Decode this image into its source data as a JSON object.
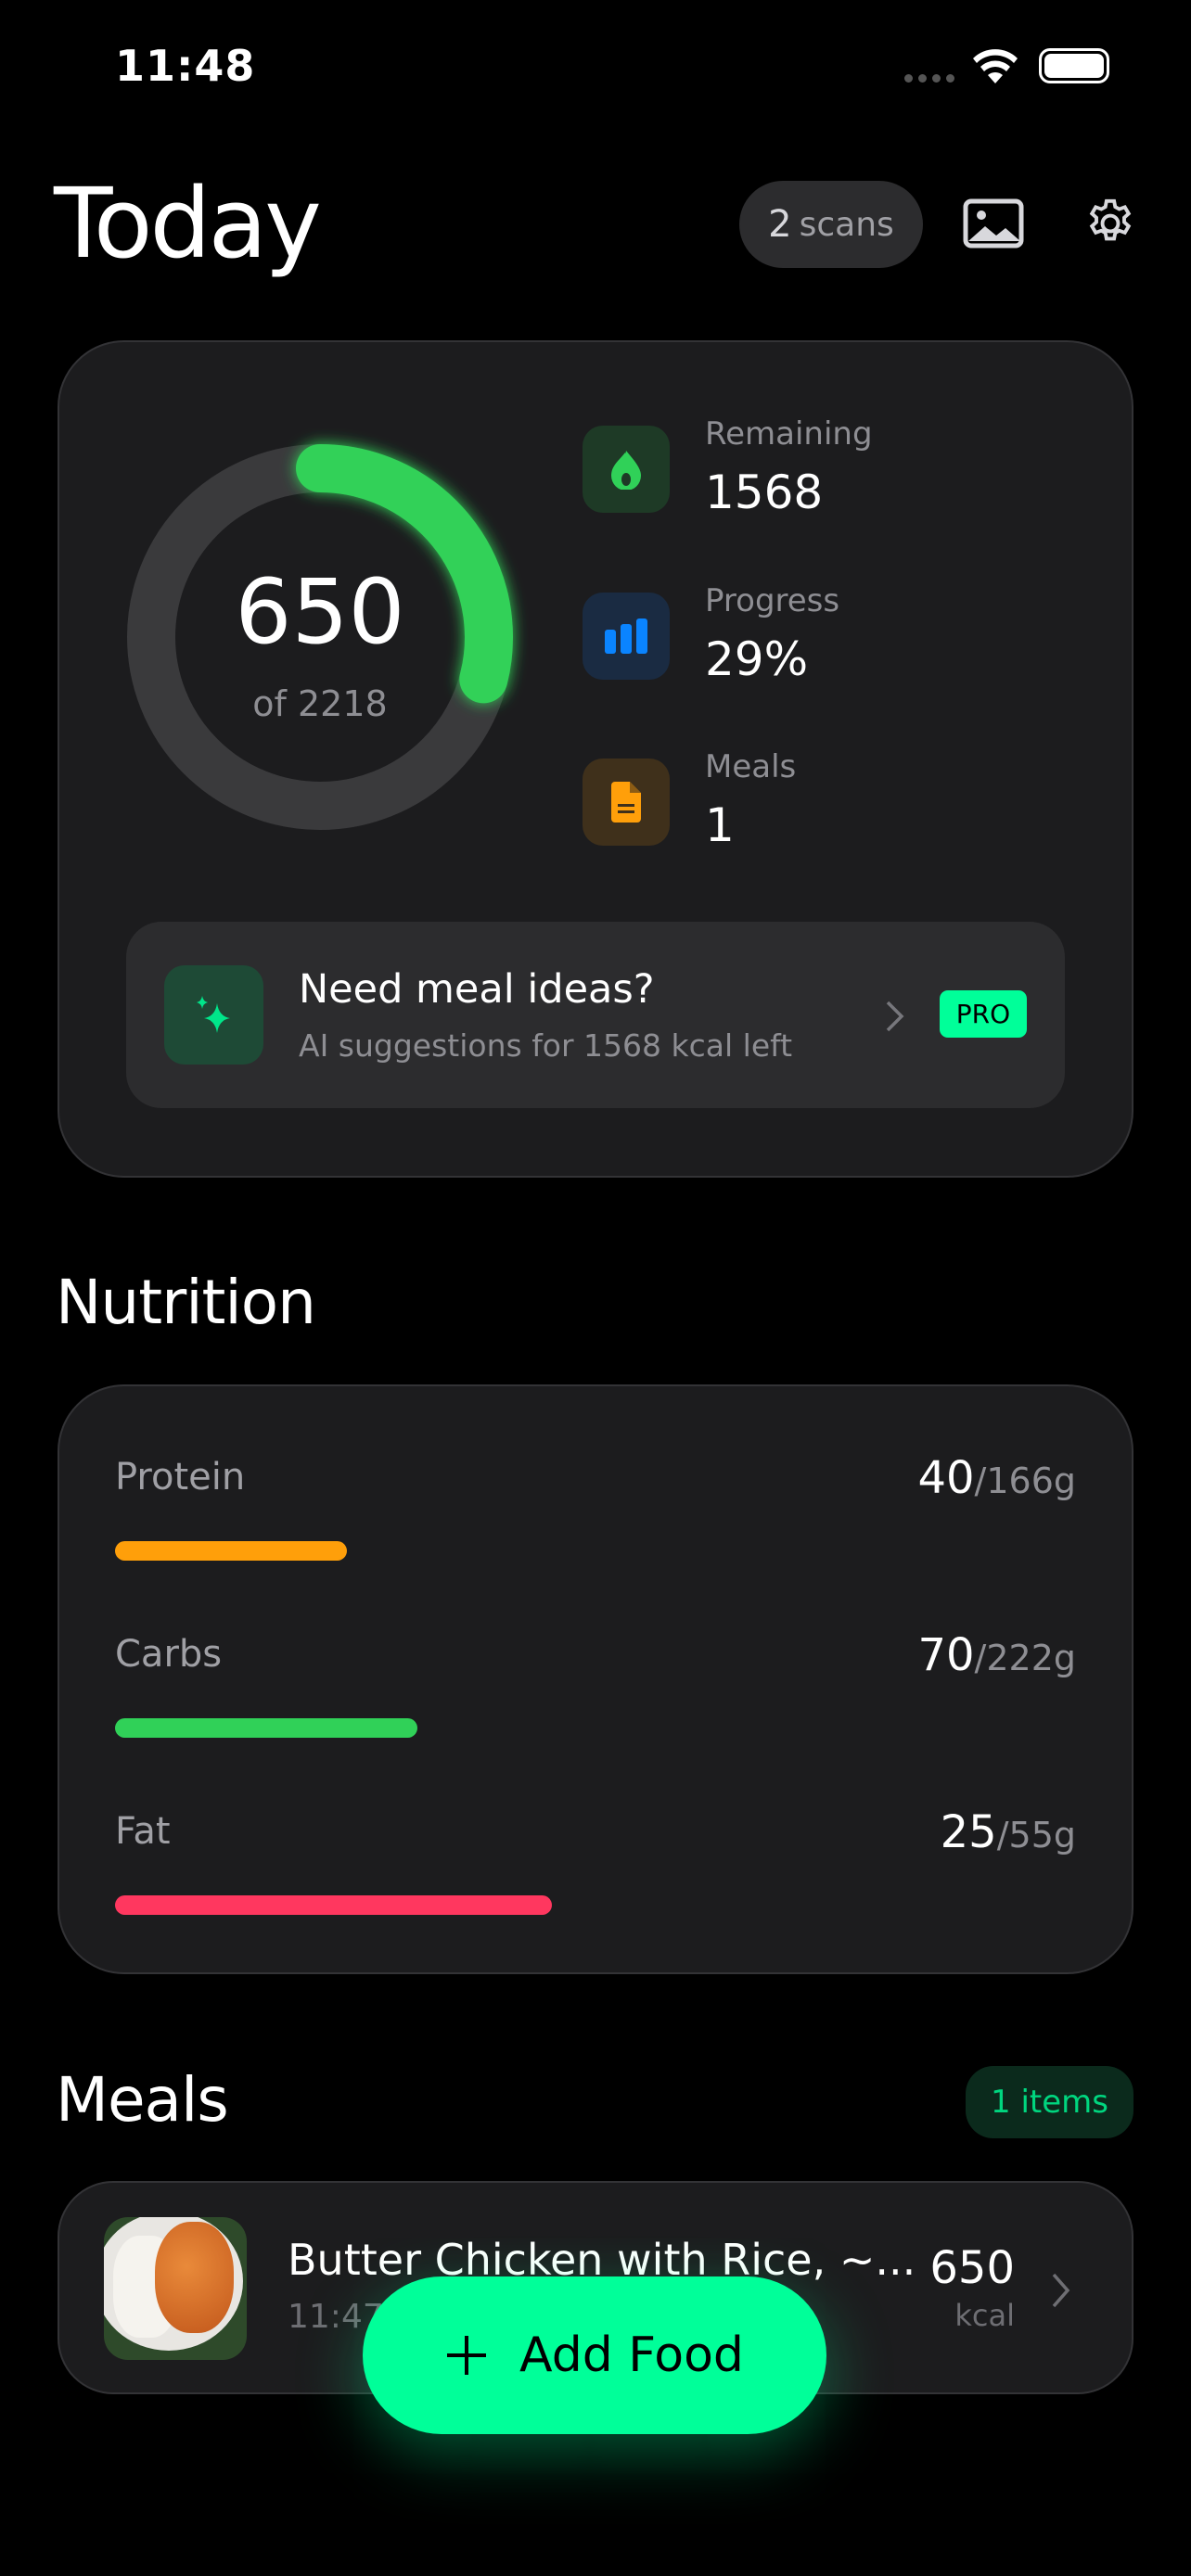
{
  "status": {
    "time": "11:48"
  },
  "header": {
    "title": "Today",
    "scans_count": "2",
    "scans_label": "scans"
  },
  "summary": {
    "consumed": "650",
    "goal_label": "of 2218",
    "progress_fraction": 0.29,
    "stats": [
      {
        "label": "Remaining",
        "value": "1568",
        "icon": "flame-icon",
        "color": "#30d158"
      },
      {
        "label": "Progress",
        "value": "29%",
        "icon": "bar-chart-icon",
        "color": "#0a84ff"
      },
      {
        "label": "Meals",
        "value": "1",
        "icon": "document-icon",
        "color": "#ff9f0a"
      }
    ],
    "banner": {
      "title": "Need meal ideas?",
      "subtitle": "AI suggestions for 1568 kcal left",
      "badge": "PRO"
    }
  },
  "nutrition": {
    "title": "Nutrition",
    "items": [
      {
        "label": "Protein",
        "value": "40",
        "goal": "/166g",
        "fraction": 0.241,
        "color": "#ff9f0a"
      },
      {
        "label": "Carbs",
        "value": "70",
        "goal": "/222g",
        "fraction": 0.315,
        "color": "#30d158"
      },
      {
        "label": "Fat",
        "value": "25",
        "goal": "/55g",
        "fraction": 0.455,
        "color": "#ff375f"
      }
    ]
  },
  "meals": {
    "title": "Meals",
    "count_label": "1 items",
    "items": [
      {
        "name": "Butter Chicken with Rice, ~...",
        "time": "11:47",
        "kcal": "650",
        "unit": "kcal"
      }
    ]
  },
  "fab": {
    "label": "Add Food",
    "color": "#00ff99"
  },
  "colors": {
    "accent": "#00ff99",
    "ring": "#30d158"
  }
}
